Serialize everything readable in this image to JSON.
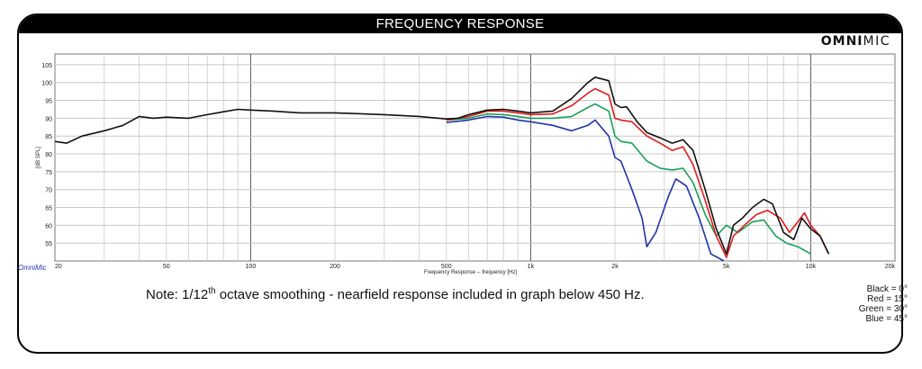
{
  "header": {
    "title": "FREQUENCY RESPONSE",
    "logo_a": "OMNI",
    "logo_b": "MIC"
  },
  "footer": {
    "brand": "OmniMic",
    "note_prefix": "Note: 1/12",
    "note_sup": "th",
    "note_suffix": " octave smoothing - nearfield response included in graph below 450 Hz."
  },
  "legend": [
    "Black = 0°",
    "Red = 15°",
    "Green = 30°",
    "Blue = 45°"
  ],
  "chart_data": {
    "type": "line",
    "xlabel": "Frequency Response -- frequency [Hz]",
    "ylabel": "[dB SPL]",
    "xscale": "log",
    "xlim": [
      20,
      20000
    ],
    "ylim": [
      50,
      108
    ],
    "grid": true,
    "x_ticks": [
      20,
      50,
      100,
      200,
      500,
      1000,
      2000,
      5000,
      10000,
      20000
    ],
    "x_tick_labels": [
      "20",
      "50",
      "100",
      "200",
      "500",
      "1k",
      "2k",
      "5k",
      "10k",
      "20k"
    ],
    "y_ticks": [
      55,
      60,
      65,
      70,
      75,
      80,
      85,
      90,
      95,
      100,
      105
    ],
    "y_tick_labels": [
      "55",
      "60",
      "65",
      "70",
      "75",
      "80",
      "85",
      "90",
      "95",
      "100",
      "105"
    ],
    "series": [
      {
        "name": "Black = 0°",
        "color": "#111111",
        "points": [
          [
            20,
            83.5
          ],
          [
            22,
            83
          ],
          [
            25,
            85
          ],
          [
            30,
            86.5
          ],
          [
            35,
            88
          ],
          [
            40,
            90.5
          ],
          [
            45,
            90
          ],
          [
            50,
            90.3
          ],
          [
            60,
            90
          ],
          [
            70,
            91
          ],
          [
            80,
            91.8
          ],
          [
            90,
            92.5
          ],
          [
            100,
            92.3
          ],
          [
            120,
            92
          ],
          [
            150,
            91.5
          ],
          [
            200,
            91.5
          ],
          [
            300,
            91
          ],
          [
            400,
            90.5
          ],
          [
            500,
            89.8
          ],
          [
            550,
            90
          ],
          [
            600,
            91
          ],
          [
            700,
            92.3
          ],
          [
            800,
            92.5
          ],
          [
            900,
            92
          ],
          [
            1000,
            91.5
          ],
          [
            1200,
            92
          ],
          [
            1400,
            95.5
          ],
          [
            1600,
            100
          ],
          [
            1700,
            101.5
          ],
          [
            1900,
            100.5
          ],
          [
            2000,
            94
          ],
          [
            2100,
            93
          ],
          [
            2200,
            93.2
          ],
          [
            2400,
            89
          ],
          [
            2600,
            86
          ],
          [
            2900,
            84.5
          ],
          [
            3200,
            83
          ],
          [
            3500,
            84
          ],
          [
            3800,
            81
          ],
          [
            4200,
            70
          ],
          [
            4600,
            59
          ],
          [
            5000,
            52
          ],
          [
            5300,
            60
          ],
          [
            5700,
            62
          ],
          [
            6200,
            65
          ],
          [
            6800,
            67.3
          ],
          [
            7300,
            66
          ],
          [
            8000,
            58
          ],
          [
            8700,
            56
          ],
          [
            9300,
            62
          ],
          [
            10000,
            59
          ],
          [
            10800,
            57
          ],
          [
            11600,
            52
          ]
        ]
      },
      {
        "name": "Red = 15°",
        "color": "#e01b1b",
        "points": [
          [
            500,
            89.5
          ],
          [
            600,
            90.5
          ],
          [
            700,
            92
          ],
          [
            800,
            92
          ],
          [
            900,
            91.5
          ],
          [
            1000,
            91
          ],
          [
            1200,
            91.2
          ],
          [
            1400,
            93.5
          ],
          [
            1600,
            97
          ],
          [
            1700,
            98.3
          ],
          [
            1900,
            96.5
          ],
          [
            2000,
            90
          ],
          [
            2100,
            89.5
          ],
          [
            2300,
            89
          ],
          [
            2600,
            85
          ],
          [
            2900,
            83
          ],
          [
            3200,
            81
          ],
          [
            3500,
            82
          ],
          [
            3800,
            77
          ],
          [
            4200,
            67
          ],
          [
            4600,
            57
          ],
          [
            5000,
            51
          ],
          [
            5300,
            57
          ],
          [
            5800,
            60
          ],
          [
            6400,
            63
          ],
          [
            7000,
            64.2
          ],
          [
            7800,
            62
          ],
          [
            8400,
            58
          ],
          [
            9000,
            61
          ],
          [
            9500,
            63.5
          ],
          [
            10000,
            60
          ],
          [
            10800,
            57
          ],
          [
            11600,
            52
          ]
        ]
      },
      {
        "name": "Green = 30°",
        "color": "#1aa05a",
        "points": [
          [
            500,
            89.5
          ],
          [
            600,
            90
          ],
          [
            700,
            91.2
          ],
          [
            800,
            91
          ],
          [
            900,
            90.5
          ],
          [
            1000,
            90
          ],
          [
            1200,
            90
          ],
          [
            1400,
            90.5
          ],
          [
            1600,
            93
          ],
          [
            1700,
            94
          ],
          [
            1900,
            92
          ],
          [
            2000,
            85
          ],
          [
            2100,
            83.5
          ],
          [
            2300,
            83
          ],
          [
            2600,
            78
          ],
          [
            2900,
            76
          ],
          [
            3200,
            75.5
          ],
          [
            3500,
            76
          ],
          [
            3800,
            72
          ],
          [
            4200,
            63
          ],
          [
            4600,
            57
          ],
          [
            5000,
            60
          ],
          [
            5500,
            58
          ],
          [
            6200,
            61
          ],
          [
            6800,
            61.5
          ],
          [
            7500,
            57
          ],
          [
            8200,
            55
          ],
          [
            9000,
            54
          ],
          [
            10000,
            52
          ]
        ]
      },
      {
        "name": "Blue = 45°",
        "color": "#2233aa",
        "points": [
          [
            500,
            88.8
          ],
          [
            600,
            89.5
          ],
          [
            700,
            90.5
          ],
          [
            800,
            90.3
          ],
          [
            900,
            89.5
          ],
          [
            1000,
            89
          ],
          [
            1200,
            88
          ],
          [
            1400,
            86.5
          ],
          [
            1600,
            88
          ],
          [
            1700,
            89.5
          ],
          [
            1900,
            85
          ],
          [
            2000,
            79
          ],
          [
            2100,
            78
          ],
          [
            2300,
            70
          ],
          [
            2500,
            62
          ],
          [
            2600,
            54
          ],
          [
            2800,
            58
          ],
          [
            3100,
            68
          ],
          [
            3300,
            73
          ],
          [
            3600,
            71
          ],
          [
            4000,
            62
          ],
          [
            4400,
            52
          ],
          [
            4900,
            50
          ]
        ]
      }
    ]
  }
}
